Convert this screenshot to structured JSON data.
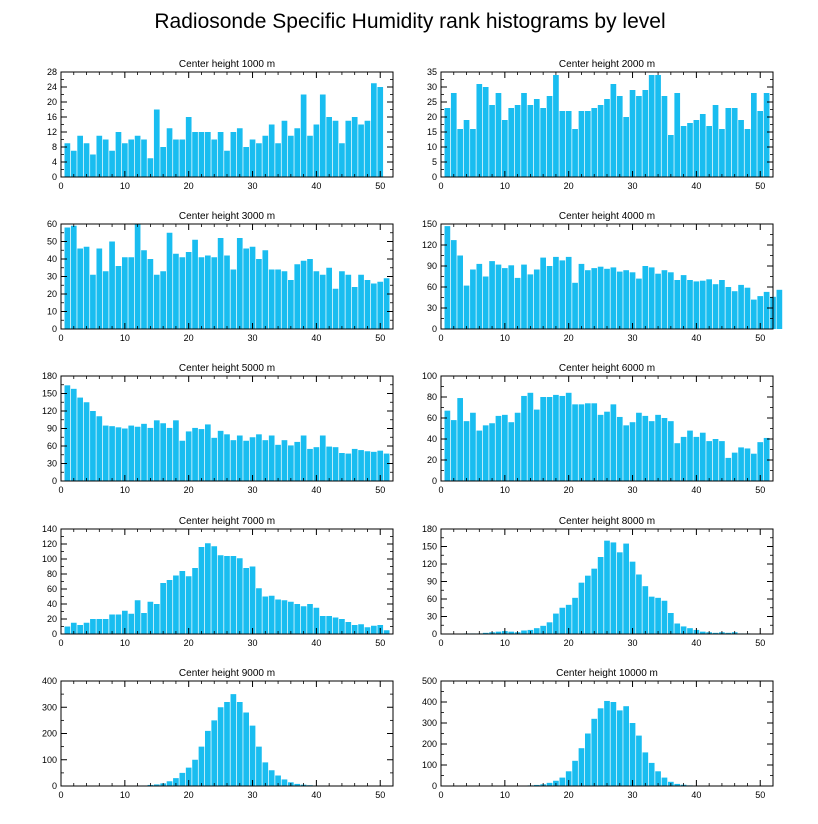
{
  "figure_title": "Radiosonde Specific Humidity rank histograms by level",
  "colors": {
    "bar": "#19BDF0",
    "bar_edge": "#ffffff",
    "axis": "#000000"
  },
  "chart_data": [
    {
      "type": "bar",
      "title": "Center height 1000 m",
      "xlabel": "",
      "ylabel": "",
      "xlim": [
        0,
        52
      ],
      "xticks": [
        0,
        10,
        20,
        30,
        40,
        50
      ],
      "ylim": [
        0,
        28
      ],
      "yticks": [
        0,
        4,
        8,
        12,
        16,
        20,
        24,
        28
      ],
      "values": [
        9,
        7,
        11,
        9,
        6,
        11,
        10,
        7,
        12,
        9,
        10,
        11,
        10,
        5,
        18,
        8,
        13,
        10,
        10,
        16,
        12,
        12,
        12,
        10,
        12,
        7,
        12,
        13,
        8,
        10,
        9,
        11,
        14,
        9,
        15,
        11,
        13,
        22,
        11,
        14,
        22,
        16,
        15,
        9,
        15,
        16,
        14,
        15,
        25,
        24
      ]
    },
    {
      "type": "bar",
      "title": "Center height 2000 m",
      "xlabel": "",
      "ylabel": "",
      "xlim": [
        0,
        52
      ],
      "xticks": [
        0,
        10,
        20,
        30,
        40,
        50
      ],
      "ylim": [
        0,
        35
      ],
      "yticks": [
        0,
        5,
        10,
        15,
        20,
        25,
        30,
        35
      ],
      "values": [
        23,
        28,
        16,
        19,
        16,
        31,
        30,
        24,
        28,
        19,
        23,
        24,
        28,
        24,
        26,
        23,
        27,
        34,
        22,
        22,
        16,
        22,
        22,
        23,
        24,
        26,
        31,
        27,
        20,
        29,
        27,
        29,
        34,
        34,
        27,
        14,
        28,
        17,
        18,
        19,
        21,
        17,
        24,
        16,
        23,
        23,
        19,
        16,
        28,
        22,
        28
      ]
    },
    {
      "type": "bar",
      "title": "Center height 3000 m",
      "xlabel": "",
      "ylabel": "",
      "xlim": [
        0,
        52
      ],
      "xticks": [
        0,
        10,
        20,
        30,
        40,
        50
      ],
      "ylim": [
        0,
        60
      ],
      "yticks": [
        0,
        10,
        20,
        30,
        40,
        50,
        60
      ],
      "values": [
        58,
        59,
        46,
        47,
        31,
        46,
        33,
        50,
        36,
        41,
        41,
        60,
        45,
        40,
        31,
        33,
        55,
        43,
        41,
        44,
        51,
        41,
        42,
        41,
        52,
        42,
        34,
        52,
        46,
        47,
        40,
        45,
        34,
        34,
        33,
        28,
        37,
        39,
        40,
        33,
        31,
        35,
        23,
        33,
        31,
        24,
        31,
        28,
        26,
        27,
        29
      ]
    },
    {
      "type": "bar",
      "title": "Center height 4000 m",
      "xlabel": "",
      "ylabel": "",
      "xlim": [
        0,
        52
      ],
      "xticks": [
        0,
        10,
        20,
        30,
        40,
        50
      ],
      "ylim": [
        0,
        150
      ],
      "yticks": [
        0,
        30,
        60,
        90,
        120,
        150
      ],
      "values": [
        147,
        127,
        105,
        62,
        85,
        93,
        75,
        97,
        92,
        87,
        91,
        73,
        92,
        78,
        85,
        102,
        90,
        103,
        98,
        103,
        66,
        93,
        84,
        87,
        89,
        86,
        88,
        82,
        84,
        81,
        72,
        90,
        88,
        79,
        84,
        81,
        70,
        77,
        70,
        68,
        69,
        71,
        64,
        70,
        60,
        54,
        63,
        59,
        42,
        47,
        53,
        46,
        56
      ]
    },
    {
      "type": "bar",
      "title": "Center height 5000 m",
      "xlabel": "",
      "ylabel": "",
      "xlim": [
        0,
        52
      ],
      "xticks": [
        0,
        10,
        20,
        30,
        40,
        50
      ],
      "ylim": [
        0,
        180
      ],
      "yticks": [
        0,
        30,
        60,
        90,
        120,
        150,
        180
      ],
      "values": [
        164,
        158,
        143,
        135,
        120,
        111,
        95,
        94,
        92,
        90,
        95,
        93,
        98,
        91,
        104,
        99,
        91,
        104,
        69,
        85,
        91,
        89,
        97,
        74,
        86,
        80,
        70,
        78,
        69,
        75,
        80,
        70,
        78,
        62,
        70,
        61,
        67,
        78,
        55,
        58,
        78,
        59,
        58,
        48,
        47,
        55,
        53,
        51,
        50,
        52,
        47
      ]
    },
    {
      "type": "bar",
      "title": "Center height 6000 m",
      "xlabel": "",
      "ylabel": "",
      "xlim": [
        0,
        52
      ],
      "xticks": [
        0,
        10,
        20,
        30,
        40,
        50
      ],
      "ylim": [
        0,
        100
      ],
      "yticks": [
        0,
        20,
        40,
        60,
        80,
        100
      ],
      "values": [
        67,
        58,
        79,
        57,
        65,
        48,
        53,
        55,
        62,
        63,
        56,
        65,
        81,
        84,
        68,
        80,
        80,
        82,
        81,
        84,
        73,
        73,
        74,
        74,
        63,
        66,
        73,
        61,
        53,
        56,
        65,
        62,
        57,
        63,
        60,
        57,
        36,
        42,
        48,
        42,
        46,
        38,
        40,
        38,
        22,
        27,
        32,
        31,
        26,
        37,
        41
      ]
    },
    {
      "type": "bar",
      "title": "Center height 7000 m",
      "xlabel": "",
      "ylabel": "",
      "xlim": [
        0,
        52
      ],
      "xticks": [
        0,
        10,
        20,
        30,
        40,
        50
      ],
      "ylim": [
        0,
        140
      ],
      "yticks": [
        0,
        20,
        40,
        60,
        80,
        100,
        120,
        140
      ],
      "values": [
        10,
        15,
        12,
        15,
        20,
        20,
        20,
        26,
        26,
        31,
        27,
        45,
        28,
        43,
        40,
        68,
        72,
        78,
        84,
        77,
        88,
        116,
        121,
        117,
        105,
        104,
        104,
        101,
        88,
        90,
        61,
        50,
        51,
        46,
        45,
        43,
        40,
        37,
        40,
        35,
        24,
        24,
        22,
        20,
        16,
        12,
        13,
        9,
        11,
        12,
        5
      ]
    },
    {
      "type": "bar",
      "title": "Center height 8000 m",
      "xlabel": "",
      "ylabel": "",
      "xlim": [
        0,
        52
      ],
      "xticks": [
        0,
        10,
        20,
        30,
        40,
        50
      ],
      "ylim": [
        0,
        180
      ],
      "yticks": [
        0,
        30,
        60,
        90,
        120,
        150,
        180
      ],
      "values": [
        0,
        0,
        0,
        1,
        1,
        1,
        2,
        3,
        4,
        5,
        4,
        3,
        6,
        7,
        10,
        14,
        20,
        35,
        45,
        50,
        62,
        88,
        100,
        112,
        132,
        160,
        157,
        140,
        155,
        124,
        102,
        82,
        64,
        62,
        57,
        36,
        18,
        13,
        10,
        7,
        4,
        3,
        2,
        3,
        2,
        3,
        1,
        1,
        0,
        0,
        0
      ]
    },
    {
      "type": "bar",
      "title": "Center height 9000 m",
      "xlabel": "",
      "ylabel": "",
      "xlim": [
        0,
        52
      ],
      "xticks": [
        0,
        10,
        20,
        30,
        40,
        50
      ],
      "ylim": [
        0,
        400
      ],
      "yticks": [
        0,
        100,
        200,
        300,
        400
      ],
      "values": [
        0,
        0,
        0,
        0,
        0,
        0,
        0,
        1,
        1,
        1,
        1,
        2,
        2,
        4,
        6,
        10,
        18,
        30,
        50,
        70,
        100,
        150,
        210,
        250,
        300,
        320,
        350,
        320,
        280,
        230,
        150,
        90,
        60,
        40,
        25,
        14,
        8,
        5,
        3,
        2,
        2,
        1,
        1,
        1,
        0,
        0,
        1,
        0,
        0,
        0,
        0
      ]
    },
    {
      "type": "bar",
      "title": "Center height 10000 m",
      "xlabel": "",
      "ylabel": "",
      "xlim": [
        0,
        52
      ],
      "xticks": [
        0,
        10,
        20,
        30,
        40,
        50
      ],
      "ylim": [
        0,
        500
      ],
      "yticks": [
        0,
        100,
        200,
        300,
        400,
        500
      ],
      "values": [
        0,
        0,
        0,
        0,
        0,
        0,
        0,
        0,
        1,
        1,
        1,
        1,
        2,
        3,
        5,
        8,
        15,
        25,
        40,
        70,
        120,
        180,
        250,
        320,
        370,
        405,
        400,
        360,
        380,
        300,
        240,
        160,
        110,
        70,
        40,
        20,
        10,
        6,
        3,
        2,
        1,
        1,
        0,
        0,
        0,
        0,
        0,
        0,
        0,
        0,
        0
      ]
    }
  ]
}
